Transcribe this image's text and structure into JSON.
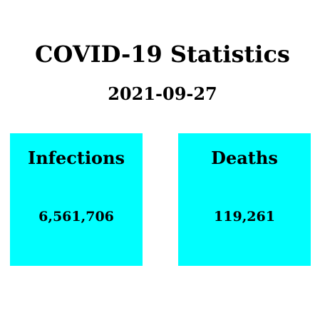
{
  "header": {
    "title": "COVID-19 Statistics",
    "date": "2021-09-27"
  },
  "cards": {
    "infections": {
      "label": "Infections",
      "value": "6,561,706"
    },
    "deaths": {
      "label": "Deaths",
      "value": "119,261"
    }
  },
  "colors": {
    "card_background": "#00ffff",
    "text": "#000000",
    "page_background": "#ffffff"
  }
}
